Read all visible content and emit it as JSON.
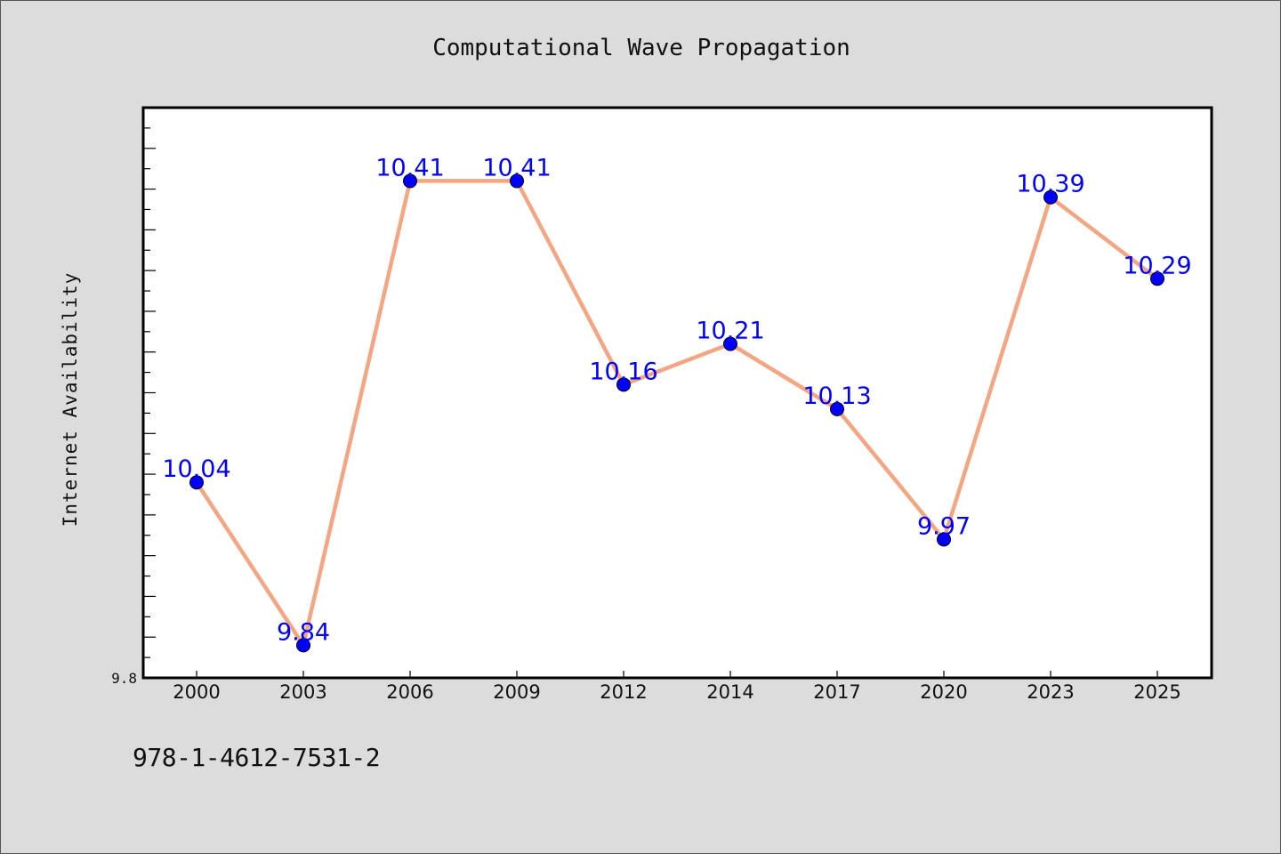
{
  "chart_data": {
    "type": "line",
    "title": "Computational Wave Propagation",
    "xlabel": "",
    "ylabel": "Internet Availability",
    "categories": [
      "2000",
      "2003",
      "2006",
      "2009",
      "2012",
      "2014",
      "2017",
      "2020",
      "2023",
      "2025"
    ],
    "series": [
      {
        "values": [
          10.04,
          9.84,
          10.41,
          10.41,
          10.16,
          10.21,
          10.13,
          9.97,
          10.39,
          10.29
        ]
      }
    ],
    "data_labels": [
      "10.04",
      "9.84",
      "10.41",
      "10.41",
      "10.16",
      "10.21",
      "10.13",
      "9.97",
      "10.39",
      "10.29"
    ],
    "ylim": [
      9.8,
      10.5
    ],
    "yticks_labeled": [
      {
        "value": 9.8,
        "label": "9.8"
      }
    ],
    "grid": false,
    "legend": "none",
    "colors": {
      "line": "#f4a582",
      "marker": "#0000ff",
      "label": "#0000ff",
      "background": "#dcdcdc",
      "plot_background": "#ffffff"
    }
  },
  "footer": {
    "isbn": "978-1-4612-7531-2"
  }
}
